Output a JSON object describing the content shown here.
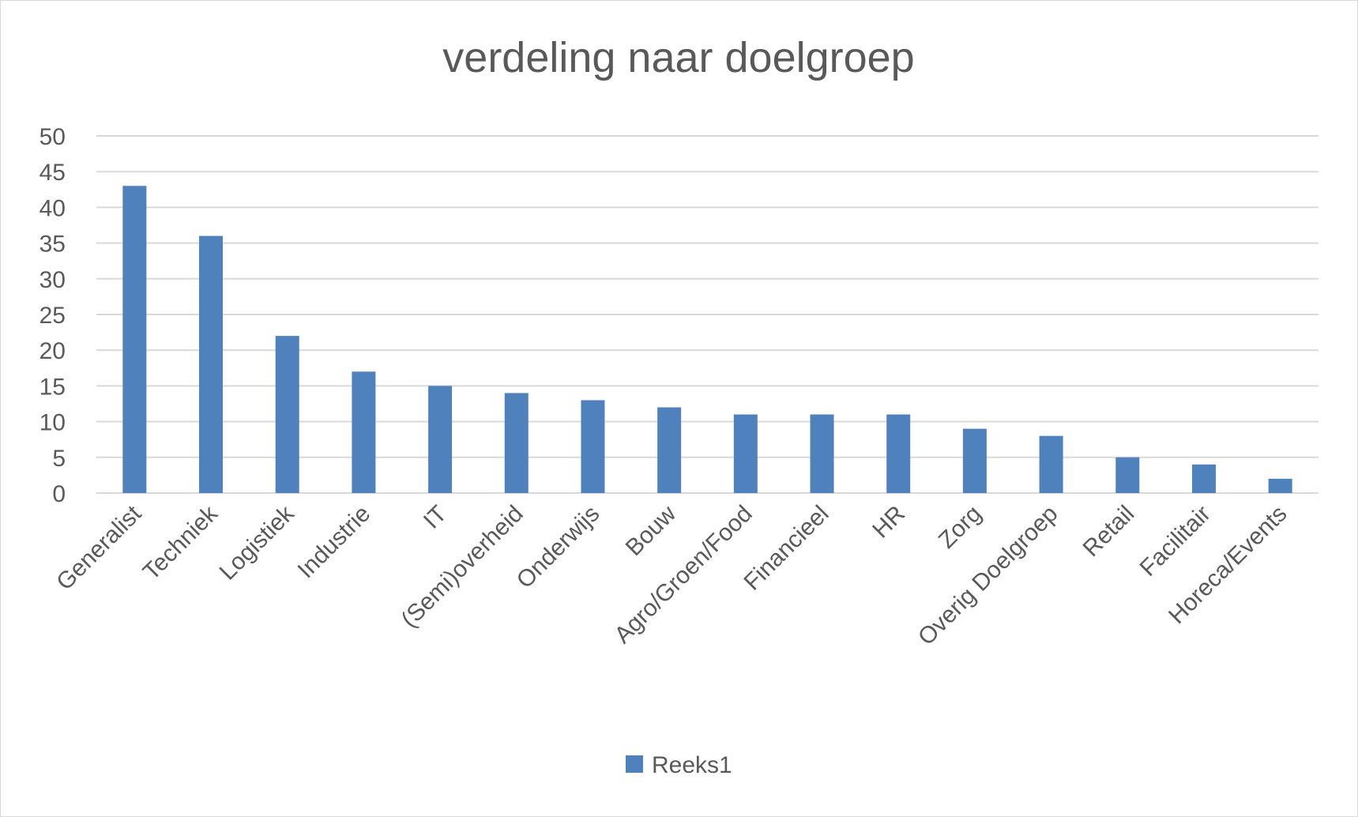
{
  "chart_data": {
    "type": "bar",
    "title": "verdeling naar doelgroep",
    "xlabel": "",
    "ylabel": "",
    "ylim": [
      0,
      50
    ],
    "yticks": [
      0,
      5,
      10,
      15,
      20,
      25,
      30,
      35,
      40,
      45,
      50
    ],
    "grid": true,
    "legend_position": "bottom",
    "categories": [
      "Generalist",
      "Techniek",
      "Logistiek",
      "Industrie",
      "IT",
      "(Semi)overheid",
      "Onderwijs",
      "Bouw",
      "Agro/Groen/Food",
      "Financieel",
      "HR",
      "Zorg",
      "Overig Doelgroep",
      "Retail",
      "Facilitair",
      "Horeca/Events"
    ],
    "series": [
      {
        "name": "Reeks1",
        "color": "#4f81bd",
        "values": [
          43,
          36,
          22,
          17,
          15,
          14,
          13,
          12,
          11,
          11,
          11,
          9,
          8,
          5,
          4,
          2
        ]
      }
    ]
  }
}
